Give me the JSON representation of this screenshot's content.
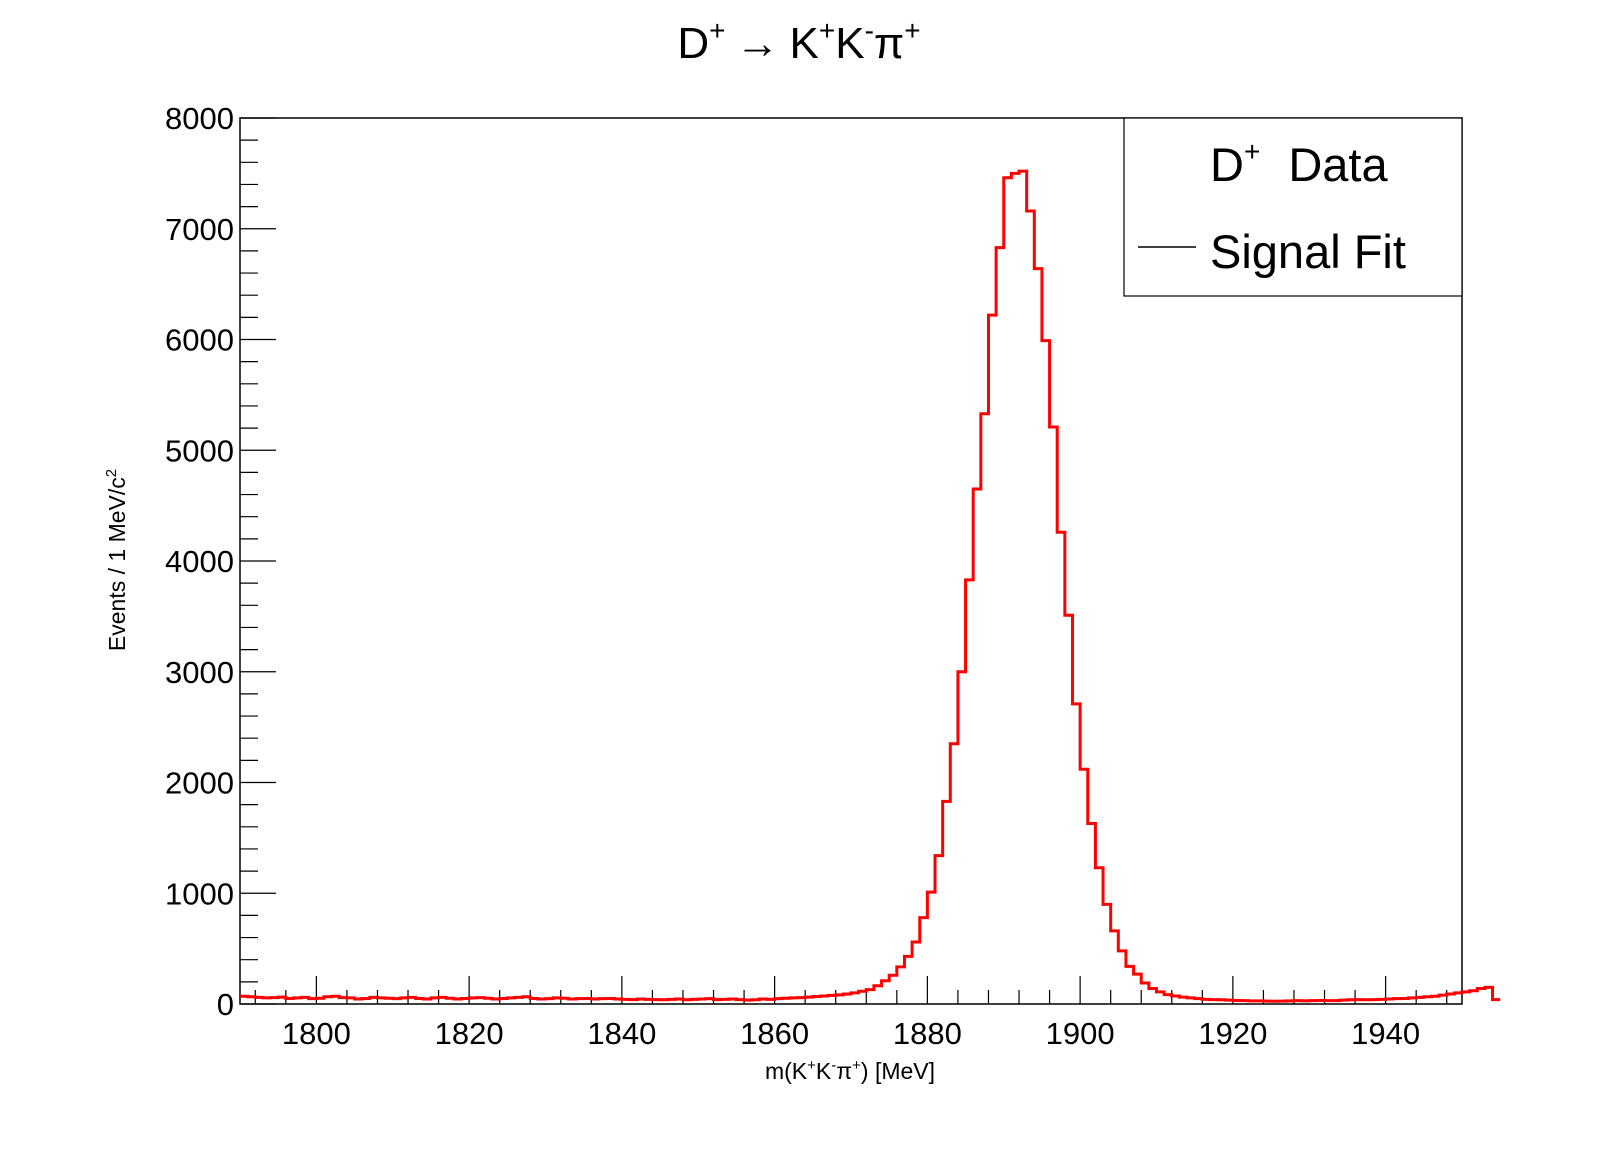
{
  "chart_data": {
    "type": "line",
    "style": "step-histogram",
    "title": {
      "text": "D",
      "sup1": "+",
      "arrow": "→",
      "decay_text": "K",
      "sup2": "+",
      "text3": "K",
      "sup3": "-",
      "text4": "π",
      "sup4": "+"
    },
    "xlabel": {
      "pre": "m(K",
      "sup1": "+",
      "mid": "K",
      "sup2": "-",
      "pi": "π",
      "sup3": "+",
      "post": ") [MeV]"
    },
    "ylabel": {
      "text": "Events / 1 MeV/c",
      "sup": "2"
    },
    "xlim": [
      1790,
      1950
    ],
    "ylim": [
      0,
      8000
    ],
    "x_ticks": [
      1800,
      1820,
      1840,
      1860,
      1880,
      1900,
      1920,
      1940
    ],
    "y_ticks": [
      0,
      1000,
      2000,
      3000,
      4000,
      5000,
      6000,
      7000,
      8000
    ],
    "grid": false,
    "legend": {
      "position": "top-right",
      "entries": [
        {
          "label": "D",
          "sup": "+",
          "label_rest": "Data",
          "marker": "none"
        },
        {
          "label": "Signal Fit",
          "marker": "line"
        }
      ]
    },
    "colors": {
      "histogram": "#ff0000",
      "axes": "#000000",
      "fit_line": "#000000"
    },
    "series": [
      {
        "name": "D+ Data",
        "bin_width": 1,
        "x_start": 1790,
        "values": [
          70,
          65,
          60,
          55,
          58,
          62,
          50,
          55,
          60,
          48,
          52,
          65,
          70,
          58,
          55,
          45,
          50,
          60,
          55,
          52,
          48,
          55,
          60,
          50,
          45,
          55,
          60,
          52,
          45,
          50,
          55,
          58,
          52,
          45,
          50,
          55,
          60,
          65,
          50,
          45,
          48,
          55,
          52,
          45,
          48,
          50,
          45,
          48,
          50,
          45,
          42,
          40,
          45,
          42,
          40,
          38,
          42,
          45,
          38,
          42,
          45,
          48,
          40,
          42,
          45,
          40,
          35,
          38,
          45,
          42,
          48,
          52,
          55,
          58,
          62,
          68,
          72,
          78,
          82,
          90,
          100,
          115,
          130,
          165,
          210,
          260,
          335,
          430,
          560,
          780,
          1010,
          1340,
          1830,
          2350,
          3000,
          3830,
          4650,
          5330,
          6220,
          6830,
          7460,
          7500,
          7520,
          7160,
          6640,
          5990,
          5210,
          4260,
          3510,
          2710,
          2120,
          1630,
          1230,
          900,
          660,
          480,
          340,
          270,
          190,
          140,
          110,
          85,
          72,
          62,
          55,
          48,
          42,
          40,
          38,
          35,
          32,
          30,
          28,
          28,
          26,
          25,
          26,
          28,
          30,
          28,
          30,
          32,
          30,
          30,
          35,
          38,
          40,
          38,
          40,
          42,
          45,
          48,
          50,
          55,
          60,
          65,
          70,
          80,
          90,
          100,
          110,
          120,
          140,
          150,
          40
        ]
      }
    ]
  }
}
